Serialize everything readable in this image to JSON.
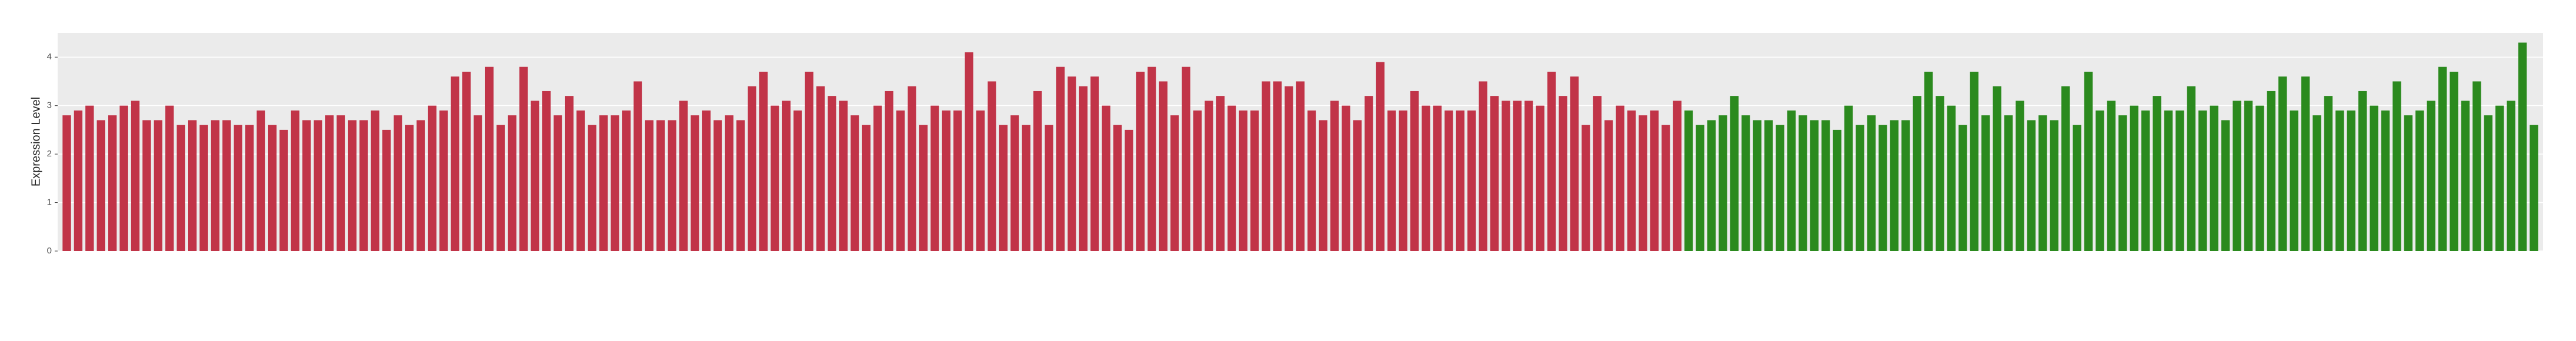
{
  "chart_data": {
    "type": "bar",
    "y_label": "Expression Level",
    "series": [
      {
        "color": "#c13448",
        "values": [
          2.8,
          2.9,
          3.0,
          2.7,
          2.8,
          3.0,
          3.1,
          2.7,
          2.7,
          3.0,
          2.6,
          2.7,
          2.6,
          2.7,
          2.7,
          2.6,
          2.6,
          2.9,
          2.6,
          2.5,
          2.9,
          2.7,
          2.7,
          2.8,
          2.8,
          2.7,
          2.7,
          2.9,
          2.5,
          2.8,
          2.6,
          2.7,
          3.0,
          2.9,
          3.6,
          3.7,
          2.8,
          3.8,
          2.6,
          2.8,
          3.8,
          3.1,
          3.3,
          2.8,
          3.2,
          2.9,
          2.6,
          2.8,
          2.8,
          2.9,
          3.5,
          2.7,
          2.7,
          2.7,
          3.1,
          2.8,
          2.9,
          2.7,
          2.8,
          2.7,
          3.4,
          3.7,
          3.0,
          3.1,
          2.9,
          3.7,
          3.4,
          3.2,
          3.1,
          2.8,
          2.6,
          3.0,
          3.3,
          2.9,
          3.4,
          2.6,
          3.0,
          2.9,
          2.9,
          4.1,
          2.9,
          3.5,
          2.6,
          2.8,
          2.6,
          3.3,
          2.6,
          3.8,
          3.6,
          3.4,
          3.6,
          3.0,
          2.6,
          2.5,
          3.7,
          3.8,
          3.5,
          2.8,
          3.8,
          2.9,
          3.1,
          3.2,
          3.0,
          2.9,
          2.9,
          3.5,
          3.5,
          3.4,
          3.5,
          2.9,
          2.7,
          3.1,
          3.0,
          2.7,
          3.2,
          3.9,
          2.9,
          2.9,
          3.3,
          3.0,
          3.0,
          2.9,
          2.9,
          2.9,
          3.5,
          3.2,
          3.1,
          3.1,
          3.1,
          3.0,
          3.7,
          3.2,
          3.6,
          2.6,
          3.2,
          2.7,
          3.0,
          2.9,
          2.8,
          2.9,
          2.6,
          3.1
        ]
      },
      {
        "color": "#2b8a1e",
        "values": [
          2.9,
          2.6,
          2.7,
          2.8,
          3.2,
          2.8,
          2.7,
          2.7,
          2.6,
          2.9,
          2.8,
          2.7,
          2.7,
          2.5,
          3.0,
          2.6,
          2.8,
          2.6,
          2.7,
          2.7,
          3.2,
          3.7,
          3.2,
          3.0,
          2.6,
          3.7,
          2.8,
          3.4,
          2.8,
          3.1,
          2.7,
          2.8,
          2.7,
          3.4,
          2.6,
          3.7,
          2.9,
          3.1,
          2.8,
          3.0,
          2.9,
          3.2,
          2.9,
          2.9,
          3.4,
          2.9,
          3.0,
          2.7,
          3.1,
          3.1,
          3.0,
          3.3,
          3.6,
          2.9,
          3.6,
          2.8,
          3.2,
          2.9,
          2.9,
          3.3,
          3.0,
          2.9,
          3.5,
          2.8,
          2.9,
          3.1,
          3.8,
          3.7,
          3.1,
          3.5,
          2.8,
          3.0,
          3.1,
          4.3,
          2.6
        ]
      }
    ],
    "ylim": [
      0,
      4.5
    ],
    "yticks": [
      0,
      1,
      2,
      3,
      4
    ],
    "grid": true
  }
}
